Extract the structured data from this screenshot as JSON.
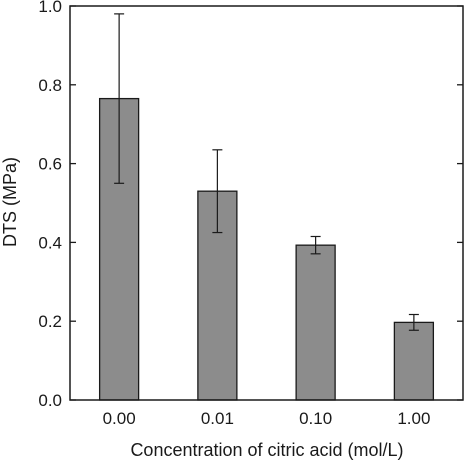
{
  "chart_data": {
    "type": "bar",
    "categories": [
      "0.00",
      "0.01",
      "0.10",
      "1.00"
    ],
    "values": [
      0.765,
      0.53,
      0.393,
      0.197
    ],
    "errors": [
      0.215,
      0.105,
      0.022,
      0.02
    ],
    "xlabel": "Concentration of citric acid (mol/L)",
    "ylabel": "DTS (MPa)",
    "ylim": [
      0,
      1.0
    ],
    "yticks": [
      "0.0",
      "0.2",
      "0.4",
      "0.6",
      "0.8",
      "1.0"
    ],
    "grid": false,
    "bar_color": "#8c8c8c",
    "error_bar_style": "vertical-with-caps"
  }
}
